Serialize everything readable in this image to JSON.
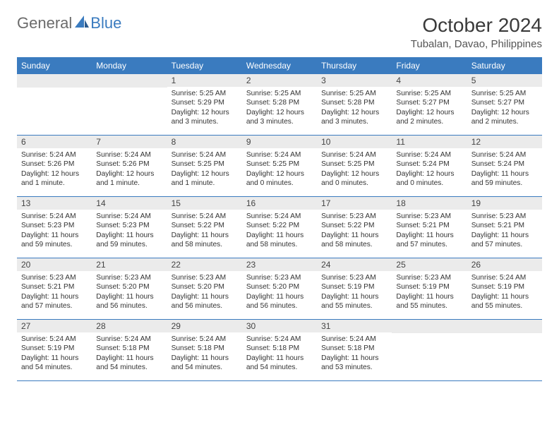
{
  "logo": {
    "text1": "General",
    "text2": "Blue"
  },
  "title": "October 2024",
  "location": "Tubalan, Davao, Philippines",
  "colors": {
    "header_bg": "#3a7bbf",
    "header_text": "#ffffff",
    "daynum_bg": "#ebebeb",
    "border": "#3a7bbf",
    "logo_gray": "#6b6b6b",
    "logo_blue": "#3a7bbf"
  },
  "day_names": [
    "Sunday",
    "Monday",
    "Tuesday",
    "Wednesday",
    "Thursday",
    "Friday",
    "Saturday"
  ],
  "weeks": [
    [
      {
        "n": "",
        "sunrise": "",
        "sunset": "",
        "daylight": ""
      },
      {
        "n": "",
        "sunrise": "",
        "sunset": "",
        "daylight": ""
      },
      {
        "n": "1",
        "sunrise": "Sunrise: 5:25 AM",
        "sunset": "Sunset: 5:29 PM",
        "daylight": "Daylight: 12 hours and 3 minutes."
      },
      {
        "n": "2",
        "sunrise": "Sunrise: 5:25 AM",
        "sunset": "Sunset: 5:28 PM",
        "daylight": "Daylight: 12 hours and 3 minutes."
      },
      {
        "n": "3",
        "sunrise": "Sunrise: 5:25 AM",
        "sunset": "Sunset: 5:28 PM",
        "daylight": "Daylight: 12 hours and 3 minutes."
      },
      {
        "n": "4",
        "sunrise": "Sunrise: 5:25 AM",
        "sunset": "Sunset: 5:27 PM",
        "daylight": "Daylight: 12 hours and 2 minutes."
      },
      {
        "n": "5",
        "sunrise": "Sunrise: 5:25 AM",
        "sunset": "Sunset: 5:27 PM",
        "daylight": "Daylight: 12 hours and 2 minutes."
      }
    ],
    [
      {
        "n": "6",
        "sunrise": "Sunrise: 5:24 AM",
        "sunset": "Sunset: 5:26 PM",
        "daylight": "Daylight: 12 hours and 1 minute."
      },
      {
        "n": "7",
        "sunrise": "Sunrise: 5:24 AM",
        "sunset": "Sunset: 5:26 PM",
        "daylight": "Daylight: 12 hours and 1 minute."
      },
      {
        "n": "8",
        "sunrise": "Sunrise: 5:24 AM",
        "sunset": "Sunset: 5:25 PM",
        "daylight": "Daylight: 12 hours and 1 minute."
      },
      {
        "n": "9",
        "sunrise": "Sunrise: 5:24 AM",
        "sunset": "Sunset: 5:25 PM",
        "daylight": "Daylight: 12 hours and 0 minutes."
      },
      {
        "n": "10",
        "sunrise": "Sunrise: 5:24 AM",
        "sunset": "Sunset: 5:25 PM",
        "daylight": "Daylight: 12 hours and 0 minutes."
      },
      {
        "n": "11",
        "sunrise": "Sunrise: 5:24 AM",
        "sunset": "Sunset: 5:24 PM",
        "daylight": "Daylight: 12 hours and 0 minutes."
      },
      {
        "n": "12",
        "sunrise": "Sunrise: 5:24 AM",
        "sunset": "Sunset: 5:24 PM",
        "daylight": "Daylight: 11 hours and 59 minutes."
      }
    ],
    [
      {
        "n": "13",
        "sunrise": "Sunrise: 5:24 AM",
        "sunset": "Sunset: 5:23 PM",
        "daylight": "Daylight: 11 hours and 59 minutes."
      },
      {
        "n": "14",
        "sunrise": "Sunrise: 5:24 AM",
        "sunset": "Sunset: 5:23 PM",
        "daylight": "Daylight: 11 hours and 59 minutes."
      },
      {
        "n": "15",
        "sunrise": "Sunrise: 5:24 AM",
        "sunset": "Sunset: 5:22 PM",
        "daylight": "Daylight: 11 hours and 58 minutes."
      },
      {
        "n": "16",
        "sunrise": "Sunrise: 5:24 AM",
        "sunset": "Sunset: 5:22 PM",
        "daylight": "Daylight: 11 hours and 58 minutes."
      },
      {
        "n": "17",
        "sunrise": "Sunrise: 5:23 AM",
        "sunset": "Sunset: 5:22 PM",
        "daylight": "Daylight: 11 hours and 58 minutes."
      },
      {
        "n": "18",
        "sunrise": "Sunrise: 5:23 AM",
        "sunset": "Sunset: 5:21 PM",
        "daylight": "Daylight: 11 hours and 57 minutes."
      },
      {
        "n": "19",
        "sunrise": "Sunrise: 5:23 AM",
        "sunset": "Sunset: 5:21 PM",
        "daylight": "Daylight: 11 hours and 57 minutes."
      }
    ],
    [
      {
        "n": "20",
        "sunrise": "Sunrise: 5:23 AM",
        "sunset": "Sunset: 5:21 PM",
        "daylight": "Daylight: 11 hours and 57 minutes."
      },
      {
        "n": "21",
        "sunrise": "Sunrise: 5:23 AM",
        "sunset": "Sunset: 5:20 PM",
        "daylight": "Daylight: 11 hours and 56 minutes."
      },
      {
        "n": "22",
        "sunrise": "Sunrise: 5:23 AM",
        "sunset": "Sunset: 5:20 PM",
        "daylight": "Daylight: 11 hours and 56 minutes."
      },
      {
        "n": "23",
        "sunrise": "Sunrise: 5:23 AM",
        "sunset": "Sunset: 5:20 PM",
        "daylight": "Daylight: 11 hours and 56 minutes."
      },
      {
        "n": "24",
        "sunrise": "Sunrise: 5:23 AM",
        "sunset": "Sunset: 5:19 PM",
        "daylight": "Daylight: 11 hours and 55 minutes."
      },
      {
        "n": "25",
        "sunrise": "Sunrise: 5:23 AM",
        "sunset": "Sunset: 5:19 PM",
        "daylight": "Daylight: 11 hours and 55 minutes."
      },
      {
        "n": "26",
        "sunrise": "Sunrise: 5:24 AM",
        "sunset": "Sunset: 5:19 PM",
        "daylight": "Daylight: 11 hours and 55 minutes."
      }
    ],
    [
      {
        "n": "27",
        "sunrise": "Sunrise: 5:24 AM",
        "sunset": "Sunset: 5:19 PM",
        "daylight": "Daylight: 11 hours and 54 minutes."
      },
      {
        "n": "28",
        "sunrise": "Sunrise: 5:24 AM",
        "sunset": "Sunset: 5:18 PM",
        "daylight": "Daylight: 11 hours and 54 minutes."
      },
      {
        "n": "29",
        "sunrise": "Sunrise: 5:24 AM",
        "sunset": "Sunset: 5:18 PM",
        "daylight": "Daylight: 11 hours and 54 minutes."
      },
      {
        "n": "30",
        "sunrise": "Sunrise: 5:24 AM",
        "sunset": "Sunset: 5:18 PM",
        "daylight": "Daylight: 11 hours and 54 minutes."
      },
      {
        "n": "31",
        "sunrise": "Sunrise: 5:24 AM",
        "sunset": "Sunset: 5:18 PM",
        "daylight": "Daylight: 11 hours and 53 minutes."
      },
      {
        "n": "",
        "sunrise": "",
        "sunset": "",
        "daylight": ""
      },
      {
        "n": "",
        "sunrise": "",
        "sunset": "",
        "daylight": ""
      }
    ]
  ]
}
